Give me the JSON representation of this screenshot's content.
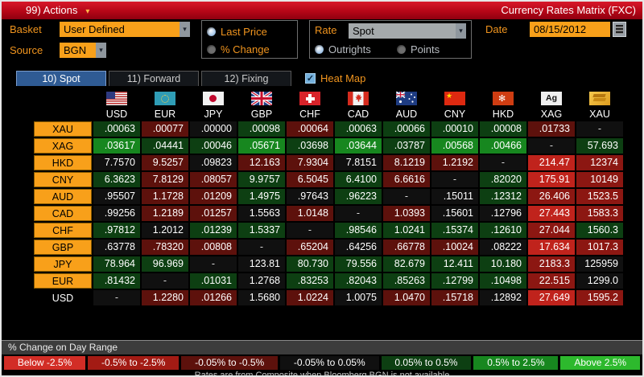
{
  "title_bar": {
    "menu_label": "99) Actions",
    "caret": "▾",
    "title": "Currency Rates Matrix (FXC)"
  },
  "controls": {
    "basket_label": "Basket",
    "basket_value": "User Defined",
    "source_label": "Source",
    "source_value": "BGN",
    "price_mode_options": [
      {
        "label": "Last Price",
        "selected": true
      },
      {
        "label": "% Change",
        "selected": false
      }
    ],
    "rate_label": "Rate",
    "rate_value": "Spot",
    "rate_type_options": [
      {
        "label": "Outrights",
        "selected": true
      },
      {
        "label": "Points",
        "selected": false
      }
    ],
    "date_label": "Date",
    "date_value": "08/15/2012"
  },
  "tabs": [
    {
      "label": "10) Spot",
      "selected": true
    },
    {
      "label": "11) Forward",
      "selected": false
    },
    {
      "label": "12) Fixing",
      "selected": false
    }
  ],
  "heat_map": {
    "label": "Heat Map",
    "checked": true
  },
  "heat_palette": {
    "r3": "#c0231c",
    "r2": "#8c1712",
    "r1": "#5d110c",
    "k": "#101010",
    "g1": "#0d3f12",
    "g2": "#17871f",
    "g3": "#2db92d"
  },
  "matrix": {
    "columns": [
      "USD",
      "EUR",
      "JPY",
      "GBP",
      "CHF",
      "CAD",
      "AUD",
      "CNY",
      "HKD",
      "XAG",
      "XAU"
    ],
    "xag_icon_text": "Ag",
    "rows": [
      {
        "label": "XAU",
        "values": [
          ".00063",
          ".00077",
          ".00000",
          ".00098",
          ".00064",
          ".00063",
          ".00066",
          ".00010",
          ".00008",
          ".01733",
          "-"
        ],
        "heat": [
          "g1",
          "r1",
          "k",
          "g1",
          "r1",
          "g1",
          "g1",
          "g1",
          "g1",
          "r1",
          "k"
        ]
      },
      {
        "label": "XAG",
        "values": [
          ".03617",
          ".04441",
          ".00046",
          ".05671",
          ".03698",
          ".03644",
          ".03787",
          ".00568",
          ".00466",
          "-",
          "57.693"
        ],
        "heat": [
          "g2",
          "g1",
          "g1",
          "g2",
          "g1",
          "g2",
          "g1",
          "g2",
          "g2",
          "k",
          "g1"
        ]
      },
      {
        "label": "HKD",
        "values": [
          "7.7570",
          "9.5257",
          ".09823",
          "12.163",
          "7.9304",
          "7.8151",
          "8.1219",
          "1.2192",
          "-",
          "214.47",
          "12374"
        ],
        "heat": [
          "k",
          "r1",
          "k",
          "r1",
          "r1",
          "k",
          "r1",
          "r1",
          "k",
          "r3",
          "r2"
        ]
      },
      {
        "label": "CNY",
        "values": [
          "6.3623",
          "7.8129",
          ".08057",
          "9.9757",
          "6.5045",
          "6.4100",
          "6.6616",
          "-",
          ".82020",
          "175.91",
          "10149"
        ],
        "heat": [
          "g1",
          "r1",
          "r1",
          "g1",
          "r1",
          "g1",
          "r1",
          "k",
          "g1",
          "r3",
          "r2"
        ]
      },
      {
        "label": "AUD",
        "values": [
          ".95507",
          "1.1728",
          ".01209",
          "1.4975",
          ".97643",
          ".96223",
          "-",
          ".15011",
          ".12312",
          "26.406",
          "1523.5"
        ],
        "heat": [
          "k",
          "r1",
          "r1",
          "g1",
          "k",
          "g1",
          "k",
          "k",
          "g1",
          "r2",
          "r2"
        ]
      },
      {
        "label": "CAD",
        "values": [
          ".99256",
          "1.2189",
          ".01257",
          "1.5563",
          "1.0148",
          "-",
          "1.0393",
          ".15601",
          ".12796",
          "27.443",
          "1583.3"
        ],
        "heat": [
          "k",
          "r1",
          "r1",
          "k",
          "r1",
          "k",
          "r1",
          "k",
          "k",
          "r3",
          "r2"
        ]
      },
      {
        "label": "CHF",
        "values": [
          ".97812",
          "1.2012",
          ".01239",
          "1.5337",
          "-",
          ".98546",
          "1.0241",
          ".15374",
          ".12610",
          "27.044",
          "1560.3"
        ],
        "heat": [
          "g1",
          "k",
          "g1",
          "g1",
          "k",
          "g1",
          "g1",
          "g1",
          "g1",
          "r2",
          "g1"
        ]
      },
      {
        "label": "GBP",
        "values": [
          ".63778",
          ".78320",
          ".00808",
          "-",
          ".65204",
          ".64256",
          ".66778",
          ".10024",
          ".08222",
          "17.634",
          "1017.3"
        ],
        "heat": [
          "k",
          "r1",
          "r1",
          "k",
          "r1",
          "k",
          "r1",
          "r1",
          "k",
          "r3",
          "r2"
        ]
      },
      {
        "label": "JPY",
        "values": [
          "78.964",
          "96.969",
          "-",
          "123.81",
          "80.730",
          "79.556",
          "82.679",
          "12.411",
          "10.180",
          "2183.3",
          "125959"
        ],
        "heat": [
          "g1",
          "g1",
          "k",
          "k",
          "g1",
          "g1",
          "g1",
          "g1",
          "g1",
          "r2",
          "k"
        ]
      },
      {
        "label": "EUR",
        "values": [
          ".81432",
          "-",
          ".01031",
          "1.2768",
          ".83253",
          ".82043",
          ".85263",
          ".12799",
          ".10498",
          "22.515",
          "1299.0"
        ],
        "heat": [
          "g1",
          "k",
          "g1",
          "k",
          "g1",
          "g1",
          "g1",
          "g1",
          "g1",
          "r2",
          "k"
        ]
      },
      {
        "label": "USD",
        "values": [
          "-",
          "1.2280",
          ".01266",
          "1.5680",
          "1.0224",
          "1.0075",
          "1.0470",
          ".15718",
          ".12892",
          "27.649",
          "1595.2"
        ],
        "heat": [
          "k",
          "r1",
          "r1",
          "k",
          "r1",
          "k",
          "r1",
          "r1",
          "k",
          "r3",
          "r2"
        ]
      }
    ]
  },
  "legend": {
    "title": "% Change on Day Range",
    "items": [
      {
        "label": "Below -2.5%",
        "color": "#d22d26"
      },
      {
        "label": "-0.5% to -2.5%",
        "color": "#a31b14"
      },
      {
        "label": "-0.05% to -0.5%",
        "color": "#5d110c"
      },
      {
        "label": "-0.05% to 0.05%",
        "color": "#101010"
      },
      {
        "label": "0.05% to 0.5%",
        "color": "#0d3f12"
      },
      {
        "label": "0.5% to 2.5%",
        "color": "#17871f"
      },
      {
        "label": "Above 2.5%",
        "color": "#2db92d"
      }
    ]
  },
  "footer_note": "Rates are from Composite when Bloomberg BGN is not available"
}
